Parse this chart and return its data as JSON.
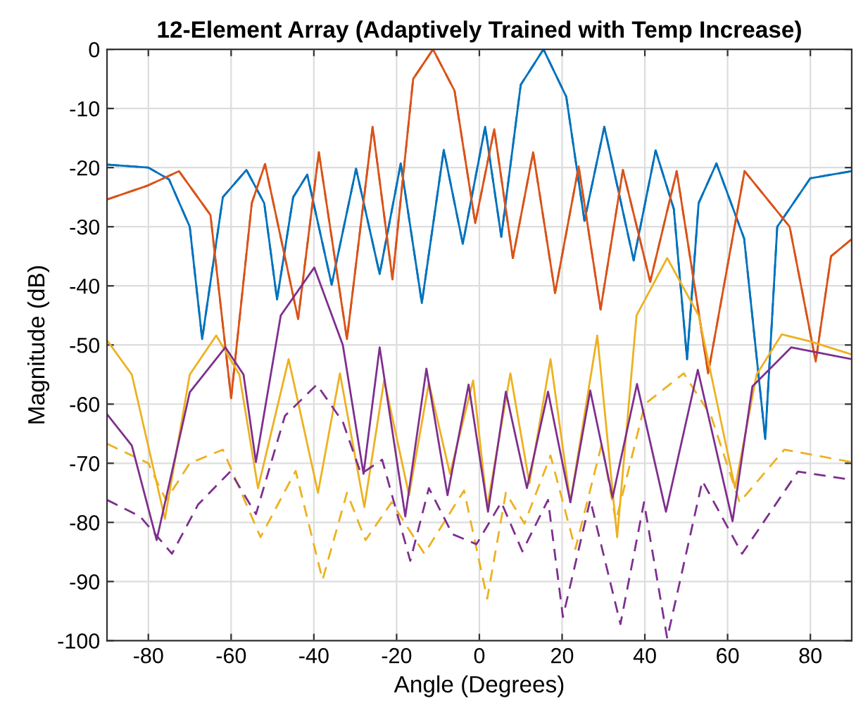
{
  "chart_data": {
    "type": "line",
    "title": "12-Element Array (Adaptively Trained with Temp Increase)",
    "xlabel": "Angle (Degrees)",
    "ylabel": "Magnitude (dB)",
    "xlim": [
      -90,
      90
    ],
    "xticks": [
      -80,
      -60,
      -40,
      -20,
      0,
      20,
      40,
      60,
      80
    ],
    "ylim": [
      -100,
      0
    ],
    "yticks": [
      -100,
      -90,
      -80,
      -70,
      -60,
      -50,
      -40,
      -30,
      -20,
      -10,
      0
    ],
    "grid": true,
    "marker": "none",
    "series": [
      {
        "color": "#0072bd",
        "line_style": "solid",
        "x": [
          -90,
          -80,
          -75,
          -70,
          -67,
          -62,
          -56.3,
          -52,
          -48.9,
          -45,
          -41.6,
          -35.7,
          -29.8,
          -24.1,
          -19,
          -13.9,
          -8.6,
          -4,
          1.4,
          5.3,
          10,
          15.5,
          21,
          25.4,
          30.2,
          37.3,
          42.6,
          47,
          50.2,
          53,
          57.3,
          64,
          69.1,
          72,
          80,
          90
        ],
        "values": [
          -19.5,
          -20,
          -22,
          -30,
          -49,
          -25,
          -20.4,
          -26,
          -42.3,
          -25,
          -21.2,
          -39.8,
          -20.2,
          -38,
          -19.3,
          -42.9,
          -17,
          -32.9,
          -13.1,
          -31.7,
          -6,
          0,
          -8,
          -29,
          -13.1,
          -35.7,
          -17.1,
          -27,
          -52.4,
          -26,
          -19.3,
          -32,
          -65.9,
          -30,
          -21.8,
          -20.6
        ]
      },
      {
        "color": "#0072bd",
        "line_style": "dashed",
        "x": [
          -90,
          -80,
          -75,
          -70,
          -67,
          -62,
          -56.3,
          -52,
          -48.9,
          -45,
          -41.6,
          -35.7,
          -29.8,
          -24.1,
          -19,
          -13.9,
          -8.6,
          -4,
          1.4,
          5.3,
          10,
          15.5,
          21,
          25.4,
          30.2,
          37.3,
          42.6,
          47,
          50.2,
          53,
          57.3,
          64,
          69.1,
          72,
          80,
          90
        ],
        "values": [
          -19.5,
          -20,
          -22,
          -30,
          -49,
          -25,
          -20.4,
          -26,
          -42.3,
          -25,
          -21.2,
          -39.8,
          -20.2,
          -38,
          -19.3,
          -42.9,
          -17,
          -32.9,
          -13.1,
          -31.7,
          -6,
          0,
          -8,
          -29,
          -13.1,
          -35.7,
          -17.1,
          -27,
          -52.4,
          -26,
          -19.3,
          -32,
          -65.9,
          -30,
          -21.8,
          -20.6
        ]
      },
      {
        "color": "#d95319",
        "line_style": "solid",
        "x": [
          -90,
          -80,
          -72.6,
          -65,
          -60,
          -55,
          -51.8,
          -43.8,
          -38.8,
          -32,
          -25.8,
          -21,
          -16,
          -11.2,
          -6,
          -1,
          3.6,
          8.1,
          13,
          18.3,
          24,
          29.3,
          34.7,
          41.3,
          47.7,
          55.3,
          64.1,
          75,
          81.3,
          85,
          90
        ],
        "values": [
          -25.4,
          -23,
          -20.6,
          -28,
          -59,
          -26,
          -19.4,
          -45.6,
          -17.4,
          -49,
          -13.1,
          -38.9,
          -5,
          0,
          -7,
          -29.4,
          -13.5,
          -35.3,
          -17.4,
          -41.2,
          -19.8,
          -44,
          -20.4,
          -39.3,
          -20.6,
          -54.8,
          -20.6,
          -30,
          -52.8,
          -35,
          -32.1
        ]
      },
      {
        "color": "#d95319",
        "line_style": "dashed",
        "x": [
          -90,
          -80,
          -72.6,
          -65,
          -60,
          -55,
          -51.8,
          -43.8,
          -38.8,
          -32,
          -25.8,
          -21,
          -16,
          -11.2,
          -6,
          -1,
          3.6,
          8.1,
          13,
          18.3,
          24,
          29.3,
          34.7,
          41.3,
          47.7,
          55.3,
          64.1,
          75,
          81.3,
          85,
          90
        ],
        "values": [
          -25.4,
          -23,
          -20.6,
          -28,
          -59,
          -26,
          -19.4,
          -45.6,
          -17.4,
          -49,
          -13.1,
          -38.9,
          -5,
          0,
          -7,
          -29.4,
          -13.5,
          -35.3,
          -17.4,
          -41.2,
          -19.8,
          -44,
          -20.4,
          -39.3,
          -20.6,
          -54.8,
          -20.6,
          -30,
          -52.8,
          -35,
          -32.1
        ]
      },
      {
        "color": "#edb120",
        "line_style": "solid",
        "x": [
          -90,
          -84,
          -76,
          -70,
          -63.6,
          -58,
          -53.5,
          -46.1,
          -39,
          -33.7,
          -27.8,
          -23,
          -17,
          -12.2,
          -7.1,
          -1.5,
          1.9,
          7.5,
          12.1,
          17.2,
          22,
          28.5,
          33.3,
          38,
          45.4,
          53,
          61.8,
          67,
          73.1,
          80,
          90
        ],
        "values": [
          -49.2,
          -55,
          -79.4,
          -55,
          -48.4,
          -55,
          -74.2,
          -52.4,
          -75,
          -54.8,
          -77.4,
          -55.9,
          -75.4,
          -56.4,
          -71.8,
          -56,
          -77.4,
          -54.8,
          -73.4,
          -52.4,
          -76.6,
          -48.4,
          -82.5,
          -45,
          -35.3,
          -45,
          -74.2,
          -55,
          -48.2,
          -49.4,
          -51.6
        ]
      },
      {
        "color": "#edb120",
        "line_style": "dashed",
        "x": [
          -90,
          -80,
          -77.2,
          -75.7,
          -70,
          -62,
          -52.9,
          -44.4,
          -37.9,
          -32,
          -27.5,
          -21.2,
          -13.3,
          -3.7,
          1.9,
          6.4,
          10.9,
          17.2,
          23.2,
          29.6,
          33,
          40,
          49.4,
          56,
          62.9,
          73.7,
          90
        ],
        "values": [
          -66.7,
          -70,
          -74.2,
          -76.2,
          -70,
          -67.7,
          -82.5,
          -71.3,
          -89.7,
          -75,
          -83,
          -76.6,
          -85.3,
          -74.6,
          -92.9,
          -75,
          -80.2,
          -68.7,
          -84.5,
          -66.7,
          -79.8,
          -60,
          -54.8,
          -62,
          -76.6,
          -67.7,
          -69.8
        ]
      },
      {
        "color": "#7e2f8e",
        "line_style": "solid",
        "x": [
          -90,
          -84,
          -78,
          -70,
          -61.4,
          -57,
          -54,
          -48,
          -39.9,
          -33,
          -28,
          -24.1,
          -17.9,
          -12.8,
          -7.7,
          -2.6,
          2.1,
          6.4,
          11.5,
          16.6,
          22,
          26.8,
          32.2,
          38.1,
          45.1,
          52.8,
          61.2,
          66,
          75.4,
          90
        ],
        "values": [
          -61.7,
          -67,
          -83,
          -58,
          -50.4,
          -55,
          -69.8,
          -45,
          -36.9,
          -50,
          -71.8,
          -50.4,
          -79,
          -54,
          -75.4,
          -56.7,
          -78.2,
          -57.9,
          -74.2,
          -57.9,
          -76.6,
          -57.7,
          -75.8,
          -56.6,
          -78.2,
          -54.2,
          -79.8,
          -57,
          -50.4,
          -52.4
        ]
      },
      {
        "color": "#7e2f8e",
        "line_style": "dashed",
        "x": [
          -90,
          -82,
          -77.7,
          -74.3,
          -68,
          -60.2,
          -54,
          -47,
          -39.3,
          -33,
          -28.6,
          -23.5,
          -16.7,
          -12.2,
          -6.5,
          -0.7,
          5.3,
          10.4,
          16.6,
          20.2,
          26.8,
          34.1,
          39.8,
          45.4,
          53.9,
          63.5,
          77,
          90
        ],
        "values": [
          -76.2,
          -79,
          -82.5,
          -85.3,
          -77,
          -71.4,
          -78.6,
          -62,
          -56.7,
          -63,
          -71.8,
          -69.4,
          -86.5,
          -74.2,
          -82,
          -83.7,
          -76.6,
          -84.9,
          -76.2,
          -96,
          -76.2,
          -97.2,
          -76.6,
          -99.6,
          -73,
          -85.3,
          -71.4,
          -72.8
        ]
      }
    ]
  }
}
